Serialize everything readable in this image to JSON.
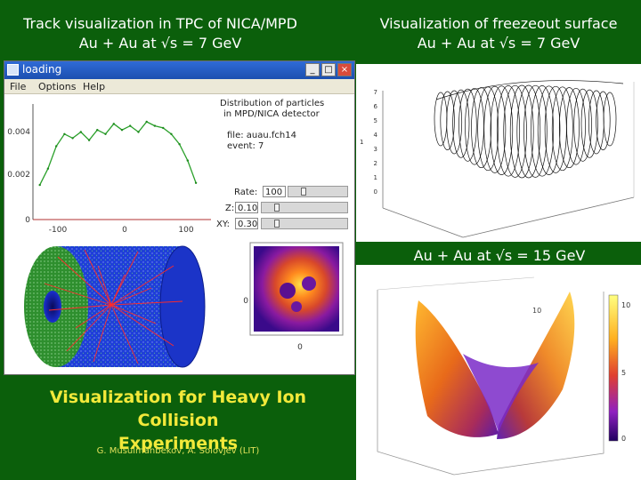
{
  "slide": {
    "title_left_line1": "Track visualization in TPC of NICA/MPD",
    "title_left_line2": "Au + Au  at √s = 7 GeV",
    "title_right_line1": "Visualization of freezeout surface",
    "title_right_line2": "Au + Au  at √s = 7 GeV",
    "title_right_mid": "Au + Au  at √s = 15 GeV",
    "caption_line1": "Visualization for Heavy Ion Collision",
    "caption_line2": "Experiments",
    "authors": "G. Musulmanbekov, A. Solovjev (LIT)"
  },
  "window": {
    "title": "loading",
    "menu": [
      "File",
      "Options",
      "Help"
    ],
    "buttons": [
      "_",
      "□",
      "×"
    ]
  },
  "info": {
    "line1": "Distribution of particles",
    "line2": "in MPD/NICA detector",
    "file_line": "file: auau.fch14",
    "event_line": "event: 7"
  },
  "controls": {
    "rate_label": "Rate:",
    "rate_value": "100",
    "z_label": "Z:",
    "z_value": "0.10",
    "xy_label": "XY:",
    "xy_value": "0.30"
  },
  "plots": {
    "dist_y_ticks": [
      "0.004",
      "0.002",
      "0"
    ],
    "dist_x_ticks": [
      "-100",
      "0",
      "100"
    ],
    "density_y_tick": "0",
    "density_x_tick": "0",
    "freeze_z_ticks": [
      "7",
      "6",
      "5",
      "4",
      "3",
      "2",
      "1",
      "0"
    ],
    "freeze_side_tick": "1",
    "colorbar_ticks": [
      "10",
      "5",
      "0"
    ],
    "surface_z_tick": "10"
  },
  "chart_data": [
    {
      "type": "line",
      "xlim": [
        -130,
        130
      ],
      "ylim": [
        0,
        0.0055
      ],
      "x": [
        -120,
        -108,
        -96,
        -84,
        -72,
        -60,
        -48,
        -36,
        -24,
        -12,
        0,
        12,
        24,
        36,
        48,
        60,
        72,
        84,
        96,
        108
      ],
      "y": [
        0.0017,
        0.0025,
        0.0036,
        0.0042,
        0.004,
        0.0043,
        0.0039,
        0.0044,
        0.0042,
        0.0047,
        0.0044,
        0.0046,
        0.0043,
        0.0048,
        0.0046,
        0.0045,
        0.0042,
        0.0037,
        0.0029,
        0.0018
      ]
    }
  ]
}
